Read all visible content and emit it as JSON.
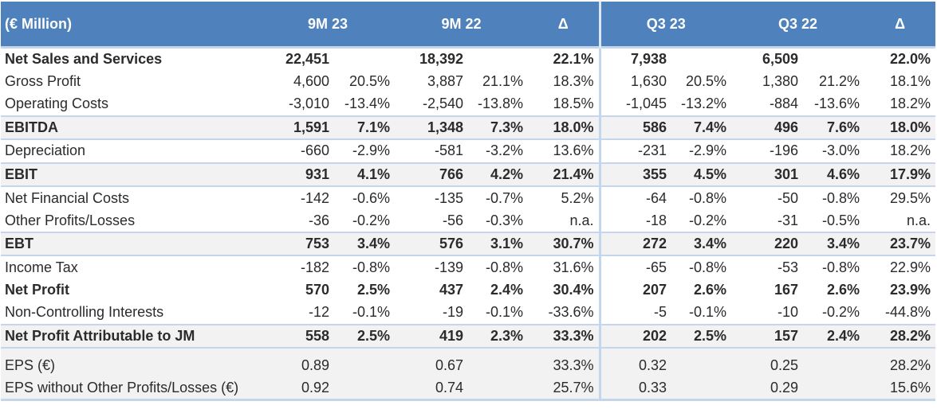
{
  "header": {
    "unit": "(€ Million)",
    "col_9m23": "9M 23",
    "col_9m22": "9M 22",
    "col_delta1": "Δ",
    "col_q323": "Q3 23",
    "col_q322": "Q3 22",
    "col_delta2": "Δ"
  },
  "rows": [
    {
      "label": "Net Sales and Services",
      "v1": "22,451",
      "p1": "",
      "v2": "18,392",
      "p2": "",
      "d1": "22.1%",
      "v3": "7,938",
      "p3": "",
      "v4": "6,509",
      "p4": "",
      "d2": "22.0%"
    },
    {
      "label": "Gross Profit",
      "v1": "4,600",
      "p1": "20.5%",
      "v2": "3,887",
      "p2": "21.1%",
      "d1": "18.3%",
      "v3": "1,630",
      "p3": "20.5%",
      "v4": "1,380",
      "p4": "21.2%",
      "d2": "18.1%"
    },
    {
      "label": "Operating Costs",
      "v1": "-3,010",
      "p1": "-13.4%",
      "v2": "-2,540",
      "p2": "-13.8%",
      "d1": "18.5%",
      "v3": "-1,045",
      "p3": "-13.2%",
      "v4": "-884",
      "p4": "-13.6%",
      "d2": "18.2%"
    },
    {
      "label": "EBITDA",
      "v1": "1,591",
      "p1": "7.1%",
      "v2": "1,348",
      "p2": "7.3%",
      "d1": "18.0%",
      "v3": "586",
      "p3": "7.4%",
      "v4": "496",
      "p4": "7.6%",
      "d2": "18.0%"
    },
    {
      "label": "Depreciation",
      "v1": "-660",
      "p1": "-2.9%",
      "v2": "-581",
      "p2": "-3.2%",
      "d1": "13.6%",
      "v3": "-231",
      "p3": "-2.9%",
      "v4": "-196",
      "p4": "-3.0%",
      "d2": "18.2%"
    },
    {
      "label": "EBIT",
      "v1": "931",
      "p1": "4.1%",
      "v2": "766",
      "p2": "4.2%",
      "d1": "21.4%",
      "v3": "355",
      "p3": "4.5%",
      "v4": "301",
      "p4": "4.6%",
      "d2": "17.9%"
    },
    {
      "label": "Net Financial Costs",
      "v1": "-142",
      "p1": "-0.6%",
      "v2": "-135",
      "p2": "-0.7%",
      "d1": "5.2%",
      "v3": "-64",
      "p3": "-0.8%",
      "v4": "-50",
      "p4": "-0.8%",
      "d2": "29.5%"
    },
    {
      "label": "Other Profits/Losses",
      "v1": "-36",
      "p1": "-0.2%",
      "v2": "-56",
      "p2": "-0.3%",
      "d1": "n.a.",
      "v3": "-18",
      "p3": "-0.2%",
      "v4": "-31",
      "p4": "-0.5%",
      "d2": "n.a."
    },
    {
      "label": "EBT",
      "v1": "753",
      "p1": "3.4%",
      "v2": "576",
      "p2": "3.1%",
      "d1": "30.7%",
      "v3": "272",
      "p3": "3.4%",
      "v4": "220",
      "p4": "3.4%",
      "d2": "23.7%"
    },
    {
      "label": "Income Tax",
      "v1": "-182",
      "p1": "-0.8%",
      "v2": "-139",
      "p2": "-0.8%",
      "d1": "31.6%",
      "v3": "-65",
      "p3": "-0.8%",
      "v4": "-53",
      "p4": "-0.8%",
      "d2": "22.9%"
    },
    {
      "label": "Net Profit",
      "v1": "570",
      "p1": "2.5%",
      "v2": "437",
      "p2": "2.4%",
      "d1": "30.4%",
      "v3": "207",
      "p3": "2.6%",
      "v4": "167",
      "p4": "2.6%",
      "d2": "23.9%"
    },
    {
      "label": "Non-Controlling Interests",
      "v1": "-12",
      "p1": "-0.1%",
      "v2": "-19",
      "p2": "-0.1%",
      "d1": "-33.6%",
      "v3": "-5",
      "p3": "-0.1%",
      "v4": "-10",
      "p4": "-0.2%",
      "d2": "-44.8%"
    },
    {
      "label": "Net Profit Attributable to JM",
      "v1": "558",
      "p1": "2.5%",
      "v2": "419",
      "p2": "2.3%",
      "d1": "33.3%",
      "v3": "202",
      "p3": "2.5%",
      "v4": "157",
      "p4": "2.4%",
      "d2": "28.2%"
    },
    {
      "label": "EPS (€)",
      "v1": "0.89",
      "p1": "",
      "v2": "0.67",
      "p2": "",
      "d1": "33.3%",
      "v3": "0.32",
      "p3": "",
      "v4": "0.25",
      "p4": "",
      "d2": "28.2%"
    },
    {
      "label": "EPS without Other Profits/Losses (€)",
      "v1": "0.92",
      "p1": "",
      "v2": "0.74",
      "p2": "",
      "d1": "25.7%",
      "v3": "0.33",
      "p3": "",
      "v4": "0.29",
      "p4": "",
      "d2": "15.6%"
    }
  ]
}
